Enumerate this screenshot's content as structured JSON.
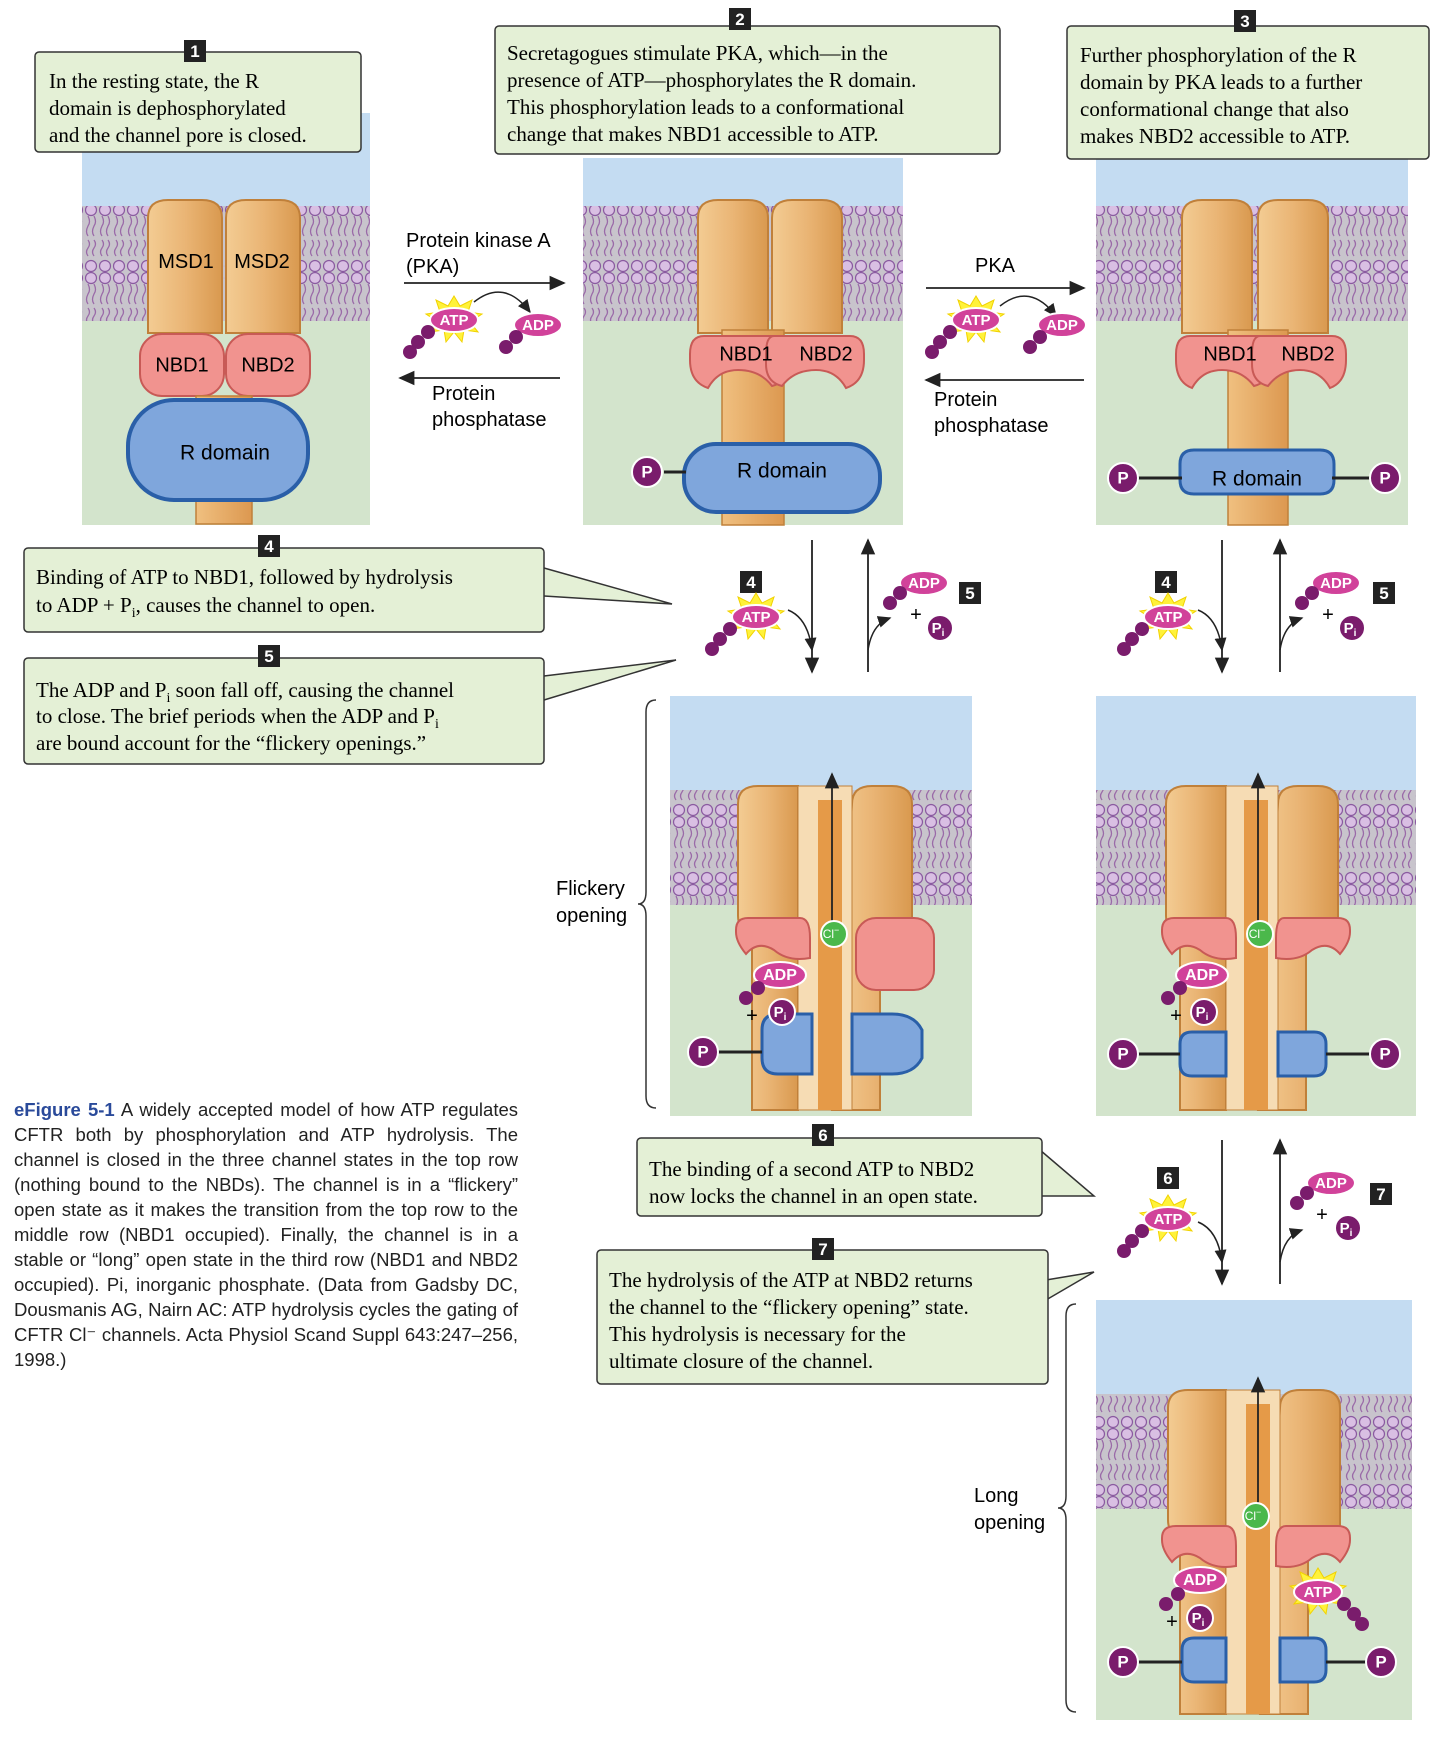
{
  "colors": {
    "callout_fill": "#e4f0d6",
    "extracellular": "#c4dcf2",
    "cytoplasm": "#d3e4cc",
    "msd": "#eab575",
    "nbd": "#f1938f",
    "r_domain": "#7fa6dc",
    "phosphate": "#7a1c6c",
    "atp_label": "#d1429a",
    "chloride": "#4bb84b"
  },
  "steps": [
    {
      "num": "1",
      "text": [
        "In the resting state, the R",
        "domain is dephosphorylated",
        "and the channel pore is closed."
      ]
    },
    {
      "num": "2",
      "text": [
        "Secretagogues stimulate PKA, which—in the",
        "presence of ATP—phosphorylates the R domain.",
        "This phosphorylation leads to a conformational",
        "change that makes NBD1 accessible to ATP."
      ]
    },
    {
      "num": "3",
      "text": [
        "Further phosphorylation of the R",
        "domain by PKA leads to a further",
        "conformational change that also",
        "makes NBD2 accessible to ATP."
      ]
    },
    {
      "num": "4",
      "text": [
        "Binding of ATP to NBD1, followed by hydrolysis",
        "to ADP + P",
        "i",
        ", causes the channel to open."
      ]
    },
    {
      "num": "5",
      "text": [
        "The ADP and P",
        "i",
        " soon fall off, causing the channel",
        "to close. The brief periods when the ADP and P",
        "i",
        "are bound account for the “flickery openings.”"
      ]
    },
    {
      "num": "6",
      "text": [
        "The binding of a second ATP to NBD2",
        "now locks the channel in an open state."
      ]
    },
    {
      "num": "7",
      "text": [
        "The hydrolysis of the ATP at NBD2 returns",
        "the channel to the “flickery opening” state.",
        "This hydrolysis is necessary for the",
        "ultimate closure of the channel."
      ]
    }
  ],
  "labels": {
    "msd1": "MSD1",
    "msd2": "MSD2",
    "nbd1": "NBD1",
    "nbd2": "NBD2",
    "r_domain": "R domain",
    "pka_full": [
      "Protein kinase A",
      "(PKA)"
    ],
    "pka": "PKA",
    "phosphatase": [
      "Protein",
      "phosphatase"
    ],
    "atp": "ATP",
    "adp": "ADP",
    "p": "P",
    "pi_main": "P",
    "pi_sub": "i",
    "plus": "+",
    "cl": "Cl",
    "cl_sup": "−",
    "flickery": [
      "Flickery",
      "opening"
    ],
    "long": [
      "Long",
      "opening"
    ]
  },
  "caption": {
    "figure": "eFigure 5-1",
    "text": "A widely accepted model of how ATP regulates CFTR both by phosphorylation and ATP hydrolysis. The channel is closed in the three channel states in the top row (nothing bound to the NBDs). The channel is in a “flickery” open state as it makes the transition from the top row to the middle row (NBD1 occupied). Finally, the channel is in a stable or “long” open state in the third row (NBD1 and NBD2 occupied). Pi, inorganic phosphate. (Data from Gadsby DC, Dousmanis AG, Nairn AC: ATP hydrolysis cycles the gating of CFTR Cl⁻ channels. Acta Physiol Scand Suppl 643:247–256, 1998.)"
  }
}
